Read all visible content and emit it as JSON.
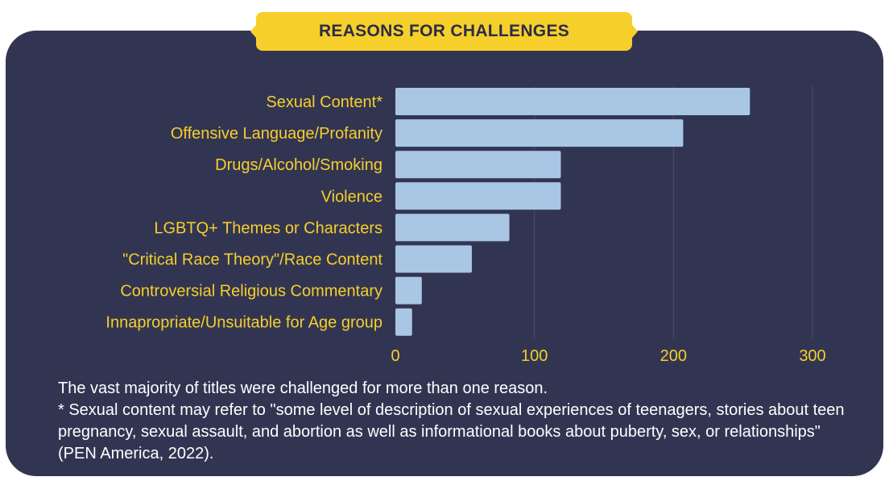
{
  "chart_data": {
    "type": "bar",
    "orientation": "horizontal",
    "title": "REASONS FOR CHALLENGES",
    "categories": [
      "Sexual Content*",
      "Offensive Language/Profanity",
      "Drugs/Alcohol/Smoking",
      "Violence",
      "LGBTQ+ Themes or Characters",
      "\"Critical Race Theory\"/Race Content",
      "Controversial Religious Commentary",
      "Innapropriate/Unsuitable for Age group"
    ],
    "values": [
      255,
      207,
      119,
      119,
      82,
      55,
      19,
      12
    ],
    "xlim": [
      0,
      300
    ],
    "xticks": [
      "0",
      "100",
      "200",
      "300"
    ],
    "grid": "vertical",
    "colors": {
      "bar": "#a9c6e5",
      "label": "#f6cf2b",
      "background": "#323552",
      "title_bg": "#f6cf2b"
    }
  },
  "notes": {
    "line1": "The vast majority of titles were challenged for more than one reason.",
    "line2": "* Sexual content may refer to \"some level of description of sexual experiences of teenagers, stories about teen pregnancy, sexual assault, and abortion as well as informational books about puberty, sex, or relationships\" (PEN America, 2022)."
  }
}
